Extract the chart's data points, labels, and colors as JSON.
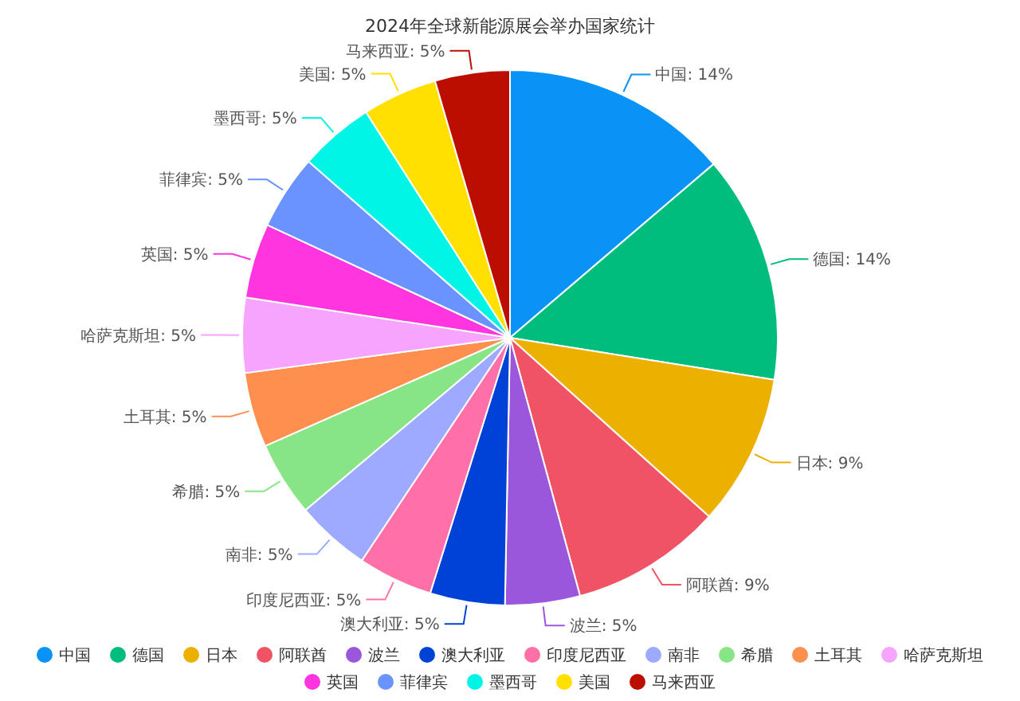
{
  "chart_data": {
    "type": "pie",
    "title": "2024年全球新能源展会举办国家统计",
    "categories": [
      "中国",
      "德国",
      "日本",
      "阿联酋",
      "波兰",
      "澳大利亚",
      "印度尼西亚",
      "南非",
      "希腊",
      "土耳其",
      "哈萨克斯坦",
      "英国",
      "菲律宾",
      "墨西哥",
      "美国",
      "马来西亚"
    ],
    "values": [
      13.7,
      13.7,
      9.1,
      9.1,
      4.5,
      4.5,
      4.5,
      4.5,
      4.5,
      4.5,
      4.5,
      4.5,
      4.5,
      4.5,
      4.5,
      4.5
    ],
    "value_labels": [
      "中国: 14%",
      "德国: 14%",
      "日本: 9%",
      "阿联酋: 9%",
      "波兰: 5%",
      "澳大利亚: 5%",
      "印度尼西亚: 5%",
      "南非: 5%",
      "希腊: 5%",
      "土耳其: 5%",
      "哈萨克斯坦: 5%",
      "英国: 5%",
      "菲律宾: 5%",
      "墨西哥: 5%",
      "美国: 5%",
      "马来西亚: 5%"
    ],
    "colors": [
      "#0a93f7",
      "#00bc7d",
      "#ebb000",
      "#f05366",
      "#9b57db",
      "#0042d6",
      "#ff6fa8",
      "#9eaaff",
      "#87e585",
      "#ff8f4f",
      "#f7a4ff",
      "#ff35e0",
      "#6a93ff",
      "#00f5e6",
      "#ffe000",
      "#bb0e00"
    ],
    "legend": "bottom"
  }
}
